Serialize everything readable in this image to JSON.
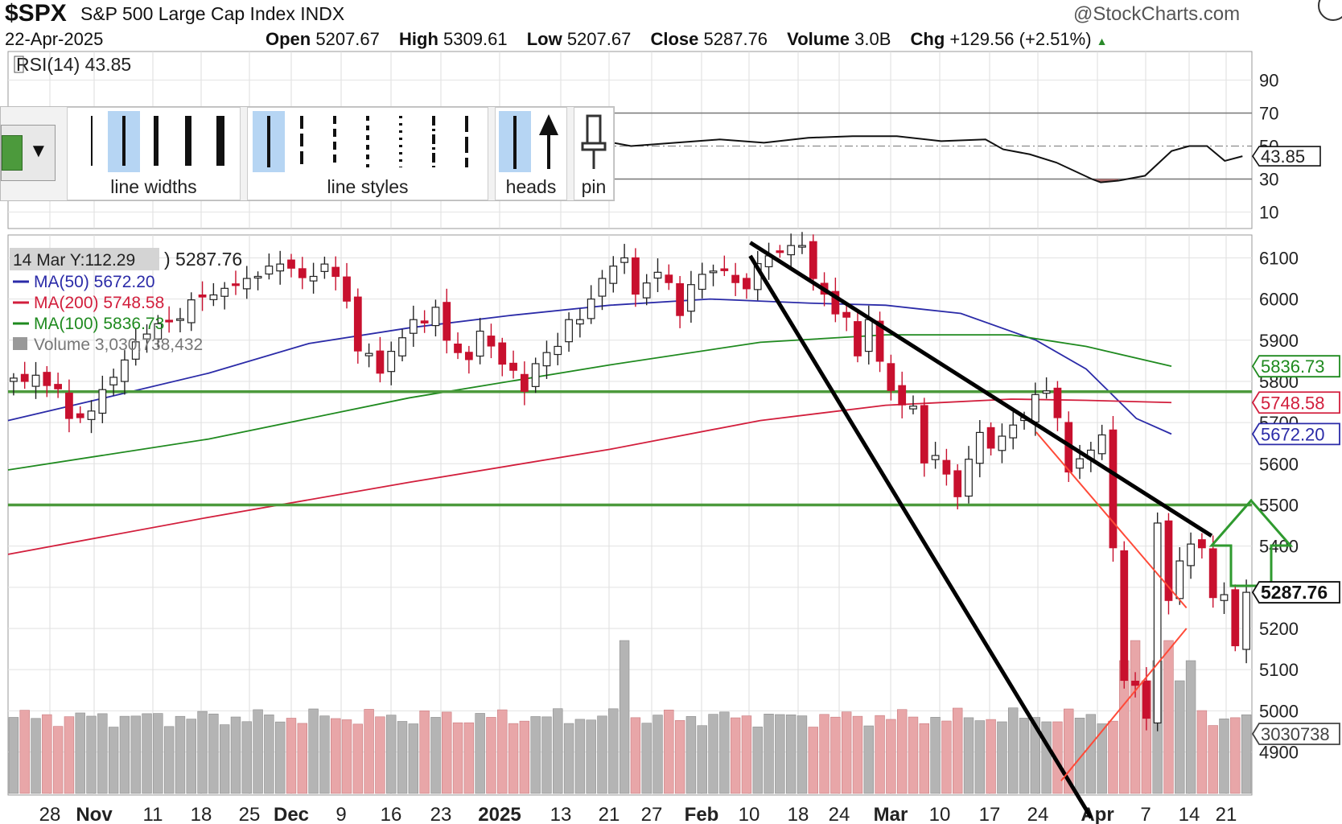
{
  "header": {
    "symbol": "$SPX",
    "name": "S&P 500 Large Cap Index  INDX",
    "brand": "@StockCharts.com",
    "date": "22-Apr-2025",
    "open_label": "Open",
    "open": "5207.67",
    "high_label": "High",
    "high": "5309.61",
    "low_label": "Low",
    "low": "5207.67",
    "close_label": "Close",
    "close": "5287.76",
    "volume_label": "Volume",
    "volume": "3.0B",
    "chg_label": "Chg",
    "chg": "+129.56 (+2.51%)"
  },
  "rsi_panel": {
    "title": "RSI(14) 43.85",
    "value_tag": "43.85"
  },
  "price_panel": {
    "crosshair_tag": "14 Mar Y:112.29",
    "spx_value": ") 5287.76",
    "legend": [
      {
        "label": "MA(50) 5672.20",
        "color": "#2b2ba8"
      },
      {
        "label": "MA(200) 5748.58",
        "color": "#d21e3c"
      },
      {
        "label": "MA(100) 5836.73",
        "color": "#1f8a1f"
      },
      {
        "label": "Volume 3,030,738,432",
        "color": "#777777"
      }
    ],
    "value_tags": {
      "ma100": "5836.73",
      "ma200": "5748.58",
      "ma50": "5672.20",
      "close": "5287.76",
      "volume": "3030738"
    }
  },
  "toolbar": {
    "line_widths_label": "line widths",
    "line_styles_label": "line styles",
    "heads_label": "heads",
    "pin_label": "pin",
    "swatch_color": "#4c9a3c"
  },
  "chart_data": [
    {
      "type": "line",
      "title": "RSI(14) 43.85",
      "y_ticks": [
        "10",
        "30",
        "50",
        "70",
        "90"
      ],
      "levels": [
        30,
        50,
        70
      ],
      "ylim": [
        0,
        100
      ],
      "x_index": [
        0,
        5,
        10,
        15,
        20,
        25,
        30,
        35,
        40,
        45,
        50,
        55,
        60,
        62,
        65,
        70,
        75,
        80,
        85,
        90,
        95,
        100,
        105,
        110,
        112,
        115,
        118,
        120,
        122,
        123,
        125,
        128,
        131,
        133,
        135,
        137,
        139
      ],
      "values": [
        67,
        66,
        64,
        62,
        60,
        58,
        57,
        55,
        56,
        57,
        58,
        59,
        60,
        61,
        55,
        50,
        52,
        54,
        52,
        55,
        56,
        56,
        53,
        54,
        48,
        45,
        40,
        35,
        30,
        28,
        29,
        32,
        47,
        50,
        50,
        41,
        43.85
      ]
    },
    {
      "type": "candlestick",
      "x_tick_labels": [
        "28",
        "Nov",
        "11",
        "18",
        "25",
        "Dec",
        "9",
        "16",
        "23",
        "2025",
        "13",
        "21",
        "27",
        "Feb",
        "10",
        "18",
        "24",
        "Mar",
        "10",
        "17",
        "24",
        "Apr",
        "7",
        "14",
        "21"
      ],
      "y_ticks": [
        "4900",
        "5000",
        "5100",
        "5200",
        "5300",
        "5400",
        "5500",
        "5600",
        "5700",
        "5800",
        "5900",
        "6000",
        "6100"
      ],
      "ylim": [
        4800,
        6180
      ],
      "close_series": [
        5808,
        5800,
        5815,
        5790,
        5782,
        5710,
        5712,
        5728,
        5780,
        5810,
        5852,
        5896,
        5915,
        5940,
        5948,
        5952,
        5998,
        6005,
        6010,
        6026,
        6036,
        6050,
        6055,
        6080,
        6085,
        6075,
        6052,
        6055,
        6085,
        6055,
        5995,
        5874,
        5868,
        5820,
        5873,
        5906,
        5950,
        5942,
        5980,
        5900,
        5870,
        5853,
        5922,
        5886,
        5842,
        5827,
        5776,
        5843,
        5870,
        5885,
        5950,
        5950,
        6000,
        6050,
        6080,
        6100,
        6012,
        6039,
        6065,
        6040,
        5960,
        6035,
        6060,
        6068,
        6069,
        6040,
        6025,
        6086,
        6105,
        6116,
        6130,
        6130,
        6050,
        6012,
        5964,
        5956,
        5862,
        5950,
        5849,
        5778,
        5743,
        5740,
        5602,
        5620,
        5575,
        5520,
        5611,
        5676,
        5638,
        5667,
        5694,
        5712,
        5768,
        5777,
        5712,
        5580,
        5612,
        5633,
        5670,
        5396,
        5074,
        5062,
        4982,
        5456,
        5268,
        5364,
        5405,
        5396,
        5275,
        5282,
        5158,
        5287.76
      ],
      "ma_series": [
        {
          "name": "MA(50)",
          "color": "#2b2ba8",
          "points": [
            [
              0,
              5705
            ],
            [
              20,
              5762
            ],
            [
              40,
              5820
            ],
            [
              60,
              5892
            ],
            [
              80,
              5930
            ],
            [
              100,
              5960
            ],
            [
              120,
              5985
            ],
            [
              140,
              6000
            ],
            [
              160,
              5990
            ],
            [
              175,
              5985
            ],
            [
              190,
              5965
            ],
            [
              205,
              5900
            ],
            [
              215,
              5830
            ],
            [
              225,
              5710
            ],
            [
              232,
              5672.2
            ]
          ]
        },
        {
          "name": "MA(200)",
          "color": "#d21e3c",
          "points": [
            [
              0,
              5380
            ],
            [
              40,
              5470
            ],
            [
              80,
              5555
            ],
            [
              120,
              5635
            ],
            [
              150,
              5705
            ],
            [
              175,
              5742
            ],
            [
              200,
              5757
            ],
            [
              215,
              5754
            ],
            [
              232,
              5748.58
            ]
          ]
        },
        {
          "name": "MA(100)",
          "color": "#1f8a1f",
          "points": [
            [
              0,
              5585
            ],
            [
              40,
              5660
            ],
            [
              80,
              5760
            ],
            [
              120,
              5840
            ],
            [
              150,
              5895
            ],
            [
              175,
              5913
            ],
            [
              200,
              5913
            ],
            [
              215,
              5885
            ],
            [
              232,
              5836.73
            ]
          ]
        }
      ],
      "horizontal_levels": [
        5775,
        5500
      ],
      "annotation_lines": [
        {
          "color": "#000000",
          "points": [
            [
              148,
              6137
            ],
            [
              240,
              5425
            ]
          ]
        },
        {
          "color": "#000000",
          "points": [
            [
              148,
              6105
            ],
            [
              216,
              4740
            ]
          ]
        },
        {
          "color": "#ff4a38",
          "points": [
            [
              205,
              5677
            ],
            [
              235,
              5250
            ]
          ]
        },
        {
          "color": "#ff4a38",
          "points": [
            [
              210,
              4830
            ],
            [
              235,
              5200
            ]
          ]
        }
      ],
      "volume_scale_max": 6000000000
    }
  ]
}
